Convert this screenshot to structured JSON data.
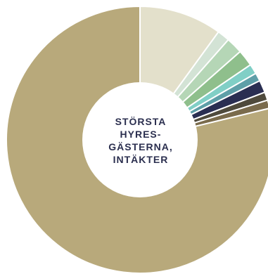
{
  "chart_data": {
    "type": "pie",
    "donut": true,
    "center_label": [
      "STÖRSTA",
      "HYRES-",
      "GÄSTERNA,",
      "INTÄKTER"
    ],
    "slices": [
      {
        "value": 10.0,
        "color": "#e3e0cb"
      },
      {
        "value": 1.5,
        "color": "#d3e3d5"
      },
      {
        "value": 2.0,
        "color": "#b5d6b6"
      },
      {
        "value": 2.0,
        "color": "#8fbf8c"
      },
      {
        "value": 1.2,
        "color": "#80cfc6"
      },
      {
        "value": 1.0,
        "color": "#5e9fa8"
      },
      {
        "value": 1.5,
        "color": "#2a2e52"
      },
      {
        "value": 1.0,
        "color": "#4f4a3c"
      },
      {
        "value": 1.0,
        "color": "#7a6b4c"
      },
      {
        "value": 78.8,
        "color": "#b8a97b"
      }
    ]
  }
}
